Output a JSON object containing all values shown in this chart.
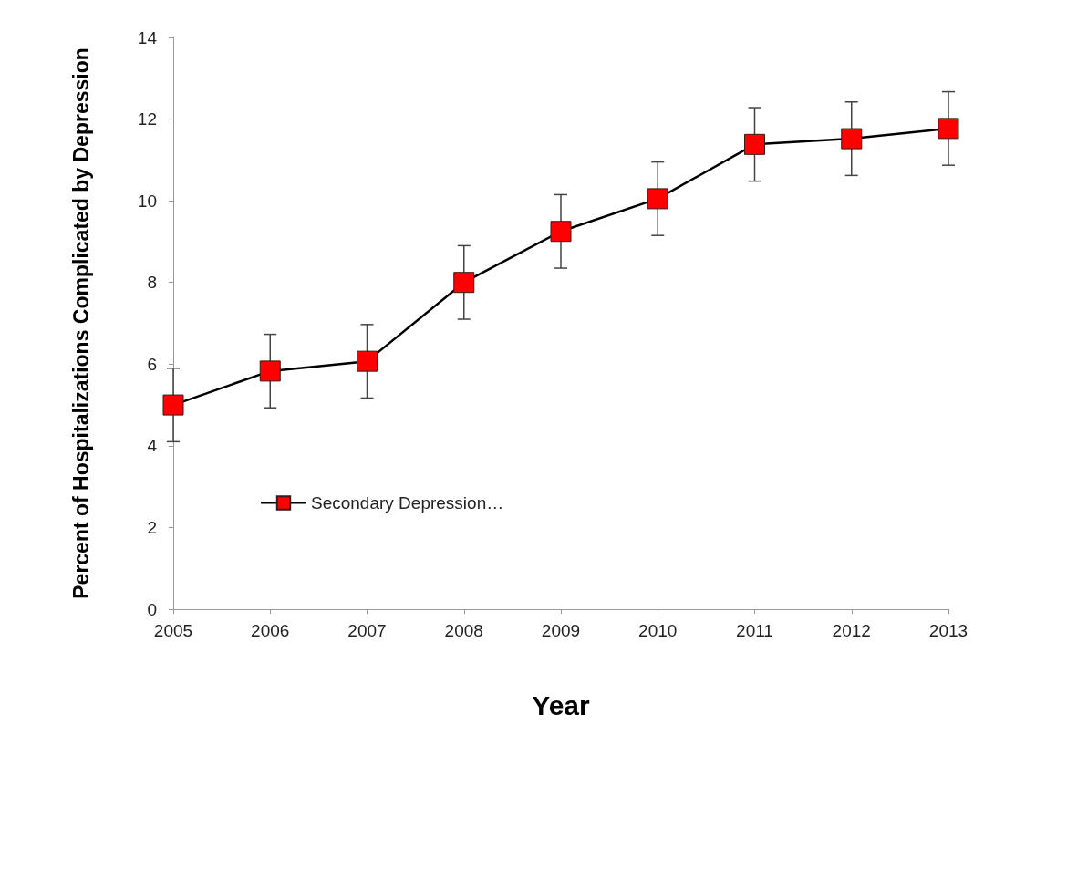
{
  "chart_data": {
    "type": "line",
    "xlabel": "Year",
    "ylabel": "Percent of Hospitalizations Complicated by Depression",
    "categories": [
      "2005",
      "2006",
      "2007",
      "2008",
      "2009",
      "2010",
      "2011",
      "2012",
      "2013"
    ],
    "series": [
      {
        "name": "Secondary Depression…",
        "color": "#ff0000",
        "values": [
          5.0,
          5.83,
          6.07,
          8.0,
          9.25,
          10.05,
          11.38,
          11.52,
          11.77
        ],
        "errors": [
          0.9,
          0.9,
          0.9,
          0.9,
          0.9,
          0.9,
          0.9,
          0.9,
          0.9
        ]
      }
    ],
    "ylim": [
      0,
      14
    ],
    "yticks": [
      0,
      2,
      4,
      6,
      8,
      10,
      12,
      14
    ],
    "grid": false,
    "legend": "left",
    "marker": "square",
    "line_style": "solid"
  }
}
